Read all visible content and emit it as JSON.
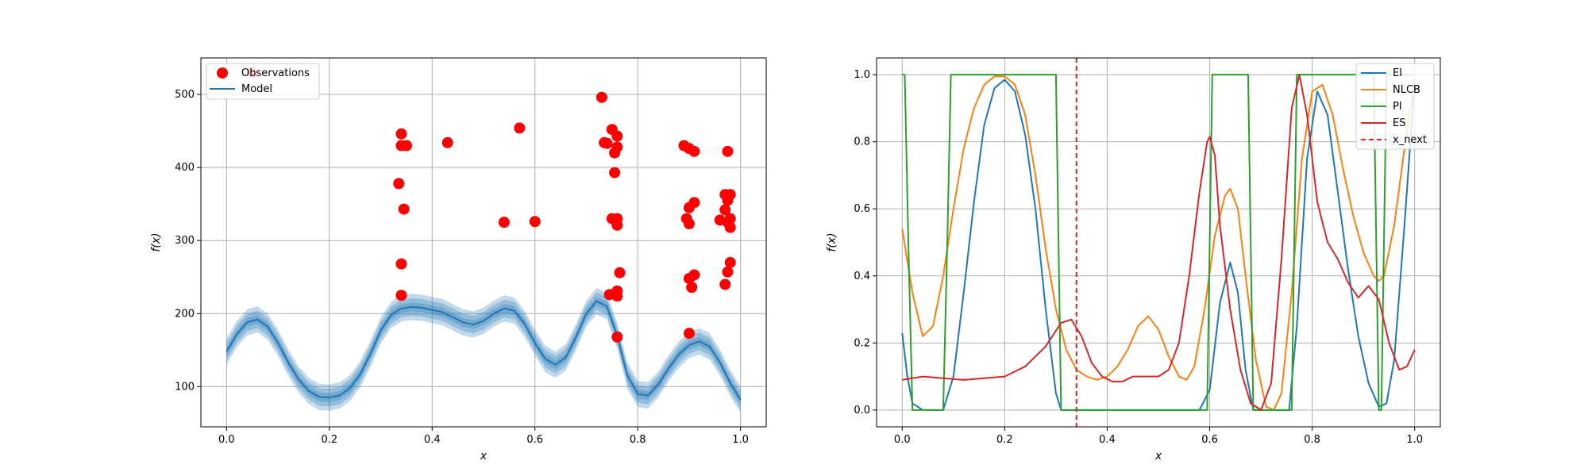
{
  "chart_data": [
    {
      "type": "scatter",
      "title": "",
      "xlabel": "x",
      "ylabel": "f(x)",
      "xlim": [
        -0.05,
        1.05
      ],
      "ylim": [
        45,
        550
      ],
      "xticks": [
        "0.0",
        "0.2",
        "0.4",
        "0.6",
        "0.8",
        "1.0"
      ],
      "yticks": [
        "100",
        "200",
        "300",
        "400",
        "500"
      ],
      "grid": true,
      "legend": {
        "placement": "upper-left",
        "entries": [
          {
            "label": "Observations",
            "color": "#ff0000",
            "marker": "circle"
          },
          {
            "label": "Model",
            "color": "#1f77b4",
            "marker": "line"
          }
        ]
      },
      "observations": [
        [
          0.05,
          530
        ],
        [
          0.335,
          378
        ],
        [
          0.34,
          446
        ],
        [
          0.34,
          430
        ],
        [
          0.345,
          343
        ],
        [
          0.34,
          268
        ],
        [
          0.34,
          225
        ],
        [
          0.35,
          430
        ],
        [
          0.43,
          434
        ],
        [
          0.54,
          325
        ],
        [
          0.57,
          454
        ],
        [
          0.6,
          326
        ],
        [
          0.73,
          496
        ],
        [
          0.735,
          434
        ],
        [
          0.74,
          433
        ],
        [
          0.745,
          226
        ],
        [
          0.75,
          452
        ],
        [
          0.75,
          330
        ],
        [
          0.755,
          393
        ],
        [
          0.755,
          420
        ],
        [
          0.76,
          443
        ],
        [
          0.76,
          428
        ],
        [
          0.76,
          231
        ],
        [
          0.76,
          224
        ],
        [
          0.76,
          330
        ],
        [
          0.76,
          321
        ],
        [
          0.765,
          256
        ],
        [
          0.76,
          168
        ],
        [
          0.89,
          430
        ],
        [
          0.895,
          330
        ],
        [
          0.9,
          345
        ],
        [
          0.9,
          426
        ],
        [
          0.9,
          323
        ],
        [
          0.9,
          248
        ],
        [
          0.9,
          173
        ],
        [
          0.905,
          236
        ],
        [
          0.91,
          352
        ],
        [
          0.91,
          253
        ],
        [
          0.91,
          422
        ],
        [
          0.96,
          328
        ],
        [
          0.97,
          342
        ],
        [
          0.97,
          363
        ],
        [
          0.97,
          240
        ],
        [
          0.975,
          422
        ],
        [
          0.975,
          355
        ],
        [
          0.975,
          325
        ],
        [
          0.975,
          257
        ],
        [
          0.98,
          363
        ],
        [
          0.98,
          330
        ],
        [
          0.98,
          318
        ],
        [
          0.98,
          270
        ]
      ],
      "model": {
        "name": "Model",
        "color": "#1f77b4",
        "band_widths": [
          6,
          12,
          18
        ],
        "mean": [
          [
            0.0,
            148
          ],
          [
            0.02,
            172
          ],
          [
            0.04,
            188
          ],
          [
            0.06,
            192
          ],
          [
            0.08,
            182
          ],
          [
            0.1,
            160
          ],
          [
            0.12,
            133
          ],
          [
            0.14,
            110
          ],
          [
            0.16,
            94
          ],
          [
            0.18,
            86
          ],
          [
            0.2,
            85
          ],
          [
            0.22,
            88
          ],
          [
            0.24,
            98
          ],
          [
            0.26,
            117
          ],
          [
            0.28,
            145
          ],
          [
            0.3,
            177
          ],
          [
            0.32,
            198
          ],
          [
            0.34,
            207
          ],
          [
            0.36,
            209
          ],
          [
            0.38,
            208
          ],
          [
            0.4,
            205
          ],
          [
            0.42,
            202
          ],
          [
            0.44,
            195
          ],
          [
            0.46,
            188
          ],
          [
            0.48,
            185
          ],
          [
            0.5,
            190
          ],
          [
            0.52,
            200
          ],
          [
            0.54,
            207
          ],
          [
            0.56,
            204
          ],
          [
            0.58,
            186
          ],
          [
            0.6,
            160
          ],
          [
            0.62,
            138
          ],
          [
            0.64,
            130
          ],
          [
            0.66,
            140
          ],
          [
            0.68,
            168
          ],
          [
            0.7,
            200
          ],
          [
            0.72,
            217
          ],
          [
            0.74,
            210
          ],
          [
            0.76,
            170
          ],
          [
            0.78,
            115
          ],
          [
            0.8,
            90
          ],
          [
            0.82,
            88
          ],
          [
            0.84,
            103
          ],
          [
            0.86,
            125
          ],
          [
            0.88,
            144
          ],
          [
            0.9,
            157
          ],
          [
            0.92,
            162
          ],
          [
            0.94,
            155
          ],
          [
            0.96,
            133
          ],
          [
            0.98,
            105
          ],
          [
            1.0,
            82
          ]
        ]
      }
    },
    {
      "type": "line",
      "title": "",
      "xlabel": "x",
      "ylabel": "f(x)",
      "xlim": [
        -0.05,
        1.05
      ],
      "ylim": [
        -0.05,
        1.05
      ],
      "xticks": [
        "0.0",
        "0.2",
        "0.4",
        "0.6",
        "0.8",
        "1.0"
      ],
      "yticks": [
        "0.0",
        "0.2",
        "0.4",
        "0.6",
        "0.8",
        "1.0"
      ],
      "grid": true,
      "legend": {
        "placement": "upper-right",
        "entries": [
          {
            "label": "EI",
            "color": "#1f77b4",
            "style": "solid"
          },
          {
            "label": "NLCB",
            "color": "#ff7f0e",
            "style": "solid"
          },
          {
            "label": "PI",
            "color": "#2ca02c",
            "style": "solid"
          },
          {
            "label": "ES",
            "color": "#d62728",
            "style": "solid"
          },
          {
            "label": "x_next",
            "color": "#d62728",
            "style": "dashed"
          }
        ]
      },
      "x_next": 0.34,
      "series": [
        {
          "name": "EI",
          "color": "#1f77b4",
          "points": [
            [
              0.0,
              0.23
            ],
            [
              0.01,
              0.1
            ],
            [
              0.02,
              0.02
            ],
            [
              0.04,
              0.0
            ],
            [
              0.08,
              0.0
            ],
            [
              0.1,
              0.1
            ],
            [
              0.12,
              0.35
            ],
            [
              0.14,
              0.62
            ],
            [
              0.16,
              0.85
            ],
            [
              0.18,
              0.96
            ],
            [
              0.2,
              0.985
            ],
            [
              0.22,
              0.95
            ],
            [
              0.24,
              0.82
            ],
            [
              0.26,
              0.6
            ],
            [
              0.28,
              0.3
            ],
            [
              0.3,
              0.05
            ],
            [
              0.31,
              0.0
            ],
            [
              0.58,
              0.0
            ],
            [
              0.6,
              0.06
            ],
            [
              0.62,
              0.32
            ],
            [
              0.64,
              0.44
            ],
            [
              0.655,
              0.35
            ],
            [
              0.67,
              0.12
            ],
            [
              0.685,
              0.0
            ],
            [
              0.755,
              0.0
            ],
            [
              0.77,
              0.25
            ],
            [
              0.79,
              0.75
            ],
            [
              0.81,
              0.95
            ],
            [
              0.83,
              0.88
            ],
            [
              0.85,
              0.65
            ],
            [
              0.87,
              0.42
            ],
            [
              0.89,
              0.22
            ],
            [
              0.91,
              0.08
            ],
            [
              0.93,
              0.01
            ],
            [
              0.945,
              0.02
            ],
            [
              0.96,
              0.15
            ],
            [
              0.98,
              0.55
            ],
            [
              1.0,
              0.98
            ]
          ]
        },
        {
          "name": "NLCB",
          "color": "#ff7f0e",
          "points": [
            [
              0.0,
              0.54
            ],
            [
              0.02,
              0.35
            ],
            [
              0.04,
              0.22
            ],
            [
              0.06,
              0.25
            ],
            [
              0.08,
              0.4
            ],
            [
              0.1,
              0.6
            ],
            [
              0.12,
              0.78
            ],
            [
              0.14,
              0.9
            ],
            [
              0.16,
              0.97
            ],
            [
              0.18,
              0.995
            ],
            [
              0.2,
              0.995
            ],
            [
              0.22,
              0.97
            ],
            [
              0.24,
              0.88
            ],
            [
              0.26,
              0.7
            ],
            [
              0.28,
              0.48
            ],
            [
              0.3,
              0.3
            ],
            [
              0.32,
              0.18
            ],
            [
              0.34,
              0.12
            ],
            [
              0.36,
              0.1
            ],
            [
              0.38,
              0.09
            ],
            [
              0.4,
              0.1
            ],
            [
              0.42,
              0.13
            ],
            [
              0.44,
              0.18
            ],
            [
              0.46,
              0.25
            ],
            [
              0.48,
              0.28
            ],
            [
              0.5,
              0.24
            ],
            [
              0.52,
              0.16
            ],
            [
              0.54,
              0.1
            ],
            [
              0.555,
              0.09
            ],
            [
              0.57,
              0.13
            ],
            [
              0.59,
              0.3
            ],
            [
              0.61,
              0.52
            ],
            [
              0.63,
              0.64
            ],
            [
              0.64,
              0.66
            ],
            [
              0.655,
              0.6
            ],
            [
              0.67,
              0.4
            ],
            [
              0.69,
              0.15
            ],
            [
              0.71,
              0.01
            ],
            [
              0.725,
              0.0
            ],
            [
              0.74,
              0.05
            ],
            [
              0.76,
              0.35
            ],
            [
              0.78,
              0.75
            ],
            [
              0.8,
              0.95
            ],
            [
              0.82,
              0.97
            ],
            [
              0.84,
              0.88
            ],
            [
              0.86,
              0.72
            ],
            [
              0.88,
              0.58
            ],
            [
              0.9,
              0.47
            ],
            [
              0.92,
              0.4
            ],
            [
              0.93,
              0.385
            ],
            [
              0.94,
              0.4
            ],
            [
              0.96,
              0.55
            ],
            [
              0.98,
              0.78
            ],
            [
              1.0,
              0.99
            ]
          ]
        },
        {
          "name": "PI",
          "color": "#2ca02c",
          "points": [
            [
              0.0,
              1.0
            ],
            [
              0.005,
              1.0
            ],
            [
              0.012,
              0.5
            ],
            [
              0.02,
              0.0
            ],
            [
              0.08,
              0.0
            ],
            [
              0.088,
              0.5
            ],
            [
              0.095,
              1.0
            ],
            [
              0.3,
              1.0
            ],
            [
              0.305,
              0.5
            ],
            [
              0.31,
              0.0
            ],
            [
              0.595,
              0.0
            ],
            [
              0.6,
              0.5
            ],
            [
              0.605,
              1.0
            ],
            [
              0.675,
              1.0
            ],
            [
              0.68,
              0.5
            ],
            [
              0.685,
              0.0
            ],
            [
              0.76,
              0.0
            ],
            [
              0.765,
              0.5
            ],
            [
              0.77,
              1.0
            ],
            [
              0.92,
              1.0
            ],
            [
              0.925,
              0.5
            ],
            [
              0.93,
              0.0
            ],
            [
              0.935,
              0.0
            ],
            [
              0.94,
              0.5
            ],
            [
              0.945,
              1.0
            ],
            [
              1.0,
              1.0
            ]
          ]
        },
        {
          "name": "ES",
          "color": "#d62728",
          "points": [
            [
              0.0,
              0.09
            ],
            [
              0.04,
              0.1
            ],
            [
              0.08,
              0.095
            ],
            [
              0.12,
              0.09
            ],
            [
              0.16,
              0.095
            ],
            [
              0.2,
              0.1
            ],
            [
              0.24,
              0.13
            ],
            [
              0.28,
              0.19
            ],
            [
              0.31,
              0.26
            ],
            [
              0.33,
              0.27
            ],
            [
              0.35,
              0.22
            ],
            [
              0.37,
              0.14
            ],
            [
              0.39,
              0.1
            ],
            [
              0.41,
              0.085
            ],
            [
              0.43,
              0.085
            ],
            [
              0.45,
              0.1
            ],
            [
              0.47,
              0.1
            ],
            [
              0.5,
              0.1
            ],
            [
              0.52,
              0.12
            ],
            [
              0.54,
              0.2
            ],
            [
              0.56,
              0.4
            ],
            [
              0.58,
              0.65
            ],
            [
              0.595,
              0.8
            ],
            [
              0.6,
              0.815
            ],
            [
              0.61,
              0.76
            ],
            [
              0.62,
              0.55
            ],
            [
              0.64,
              0.3
            ],
            [
              0.66,
              0.12
            ],
            [
              0.68,
              0.02
            ],
            [
              0.7,
              0.0
            ],
            [
              0.72,
              0.08
            ],
            [
              0.74,
              0.45
            ],
            [
              0.76,
              0.9
            ],
            [
              0.775,
              1.0
            ],
            [
              0.79,
              0.88
            ],
            [
              0.81,
              0.62
            ],
            [
              0.83,
              0.5
            ],
            [
              0.85,
              0.45
            ],
            [
              0.87,
              0.38
            ],
            [
              0.89,
              0.335
            ],
            [
              0.91,
              0.37
            ],
            [
              0.93,
              0.33
            ],
            [
              0.95,
              0.2
            ],
            [
              0.97,
              0.12
            ],
            [
              0.985,
              0.13
            ],
            [
              1.0,
              0.18
            ]
          ]
        }
      ]
    }
  ]
}
